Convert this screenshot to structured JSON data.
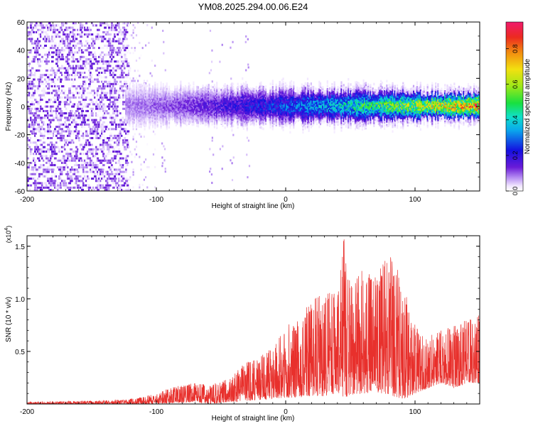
{
  "figure": {
    "title": "YM08.2025.294.00.06.E24"
  },
  "colors": {
    "snr_line": "#e8302c",
    "axis": "#000000",
    "grid_tick": "#000000"
  },
  "chart_data": [
    {
      "type": "heatmap",
      "name": "spectrogram",
      "title": "YM08.2025.294.00.06.E24",
      "xlabel": "Height of straight line (km)",
      "ylabel": "Frequency (Hz)",
      "xlim": [
        -200,
        150
      ],
      "ylim": [
        -60,
        60
      ],
      "x_ticks": [
        -200,
        -100,
        0,
        100
      ],
      "x_tick_labels": [
        "-200",
        "-100",
        "0",
        "100"
      ],
      "y_ticks": [
        -60,
        -40,
        -20,
        0,
        20,
        40,
        60
      ],
      "y_tick_labels": [
        "-60",
        "-40",
        "-20",
        "0",
        "20",
        "40",
        "60"
      ],
      "colorbar": {
        "label": "Normalized spectral amplitude",
        "range": [
          0,
          0.95
        ],
        "ticks": [
          0.0,
          0.2,
          0.4,
          0.6,
          0.8
        ],
        "tick_labels": [
          "0.0",
          "0.2",
          "0.4",
          "0.6",
          "0.8"
        ],
        "colormap": "rainbow (violet → blue → cyan → green → yellow → orange → red → magenta)"
      },
      "regions": [
        {
          "x_range": [
            -200,
            -122
          ],
          "freq_range": [
            -60,
            60
          ],
          "amplitude": [
            0.0,
            0.15
          ],
          "description": "broadband scattered noise"
        },
        {
          "x_range": [
            -122,
            -100
          ],
          "freq_range": [
            -60,
            60
          ],
          "amplitude": [
            0.0,
            0.08
          ],
          "description": "sparse faint noise"
        },
        {
          "x_range": [
            -124,
            150
          ],
          "freq_center": 0,
          "half_width_hz": [
            10,
            6
          ],
          "amplitude": [
            0.1,
            0.9
          ],
          "description": "narrow band near 0 Hz, amplitude increasing with height"
        }
      ]
    },
    {
      "type": "line",
      "name": "snr",
      "xlabel": "Height of straight line (km)",
      "ylabel": "SNR (10 * v/v)",
      "y_scale_label": "(x10",
      "y_scale_exponent": "4",
      "y_scale_close": ")",
      "xlim": [
        -200,
        150
      ],
      "ylim": [
        0,
        1.6
      ],
      "x_ticks": [
        -200,
        -100,
        0,
        100
      ],
      "x_tick_labels": [
        "-200",
        "-100",
        "0",
        "100"
      ],
      "y_ticks": [
        0.5,
        1.0,
        1.5
      ],
      "y_tick_labels": [
        "0.5",
        "1.0",
        "1.5"
      ],
      "envelope": {
        "x": [
          -200,
          -150,
          -125,
          -110,
          -100,
          -90,
          -80,
          -70,
          -60,
          -50,
          -40,
          -35,
          -30,
          -20,
          -10,
          0,
          10,
          20,
          30,
          40,
          45,
          50,
          60,
          70,
          80,
          90,
          95,
          100,
          110,
          120,
          130,
          140,
          150
        ],
        "low": [
          0.0,
          0.0,
          0.0,
          0.0,
          0.0,
          0.01,
          0.01,
          0.02,
          0.0,
          0.01,
          0.02,
          0.02,
          0.03,
          0.04,
          0.05,
          0.06,
          0.06,
          0.08,
          0.07,
          0.1,
          0.05,
          0.08,
          0.1,
          0.1,
          0.08,
          0.05,
          0.06,
          0.1,
          0.15,
          0.2,
          0.15,
          0.2,
          0.2
        ],
        "high": [
          0.02,
          0.03,
          0.04,
          0.07,
          0.1,
          0.15,
          0.18,
          0.2,
          0.18,
          0.22,
          0.28,
          0.35,
          0.4,
          0.45,
          0.55,
          0.75,
          0.8,
          1.0,
          1.05,
          1.1,
          1.6,
          1.2,
          1.3,
          1.25,
          1.45,
          1.2,
          0.95,
          0.75,
          0.65,
          0.7,
          0.75,
          0.8,
          0.85
        ]
      }
    }
  ]
}
